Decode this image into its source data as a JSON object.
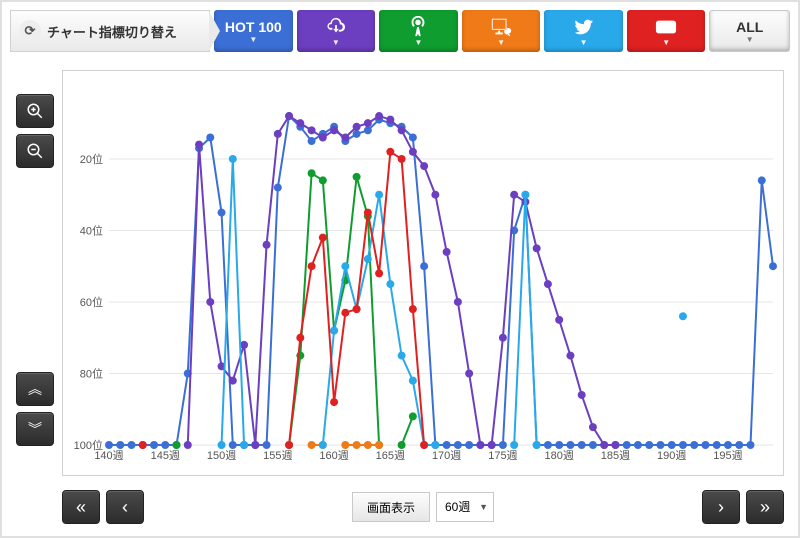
{
  "header": {
    "lead_label": "チャート指標切り替え",
    "tabs": {
      "hot100_label": "HOT 100",
      "all_label": "ALL"
    }
  },
  "controls": {
    "display_label": "画面表示",
    "range_select_value": "60週"
  },
  "chart": {
    "type": "line",
    "background_color": "#ffffff",
    "grid_color": "#e6e6e6",
    "x": {
      "min": 140,
      "max": 199,
      "tick_step": 5,
      "suffix": "週",
      "label_fontsize": 11
    },
    "y": {
      "min": 1,
      "max": 100,
      "inverted": true,
      "ticks": [
        20,
        40,
        60,
        80,
        100
      ],
      "suffix": "位",
      "label_fontsize": 11
    },
    "marker_radius": 4,
    "line_width": 2,
    "series": [
      {
        "name": "hot100",
        "color": "#3b6fd6",
        "data": [
          [
            140,
            100
          ],
          [
            141,
            100
          ],
          [
            142,
            100
          ],
          [
            143,
            100
          ],
          [
            144,
            100
          ],
          [
            145,
            100
          ],
          [
            146,
            100
          ],
          [
            147,
            80
          ],
          [
            148,
            17
          ],
          [
            149,
            14
          ],
          [
            150,
            35
          ],
          [
            151,
            100
          ],
          [
            152,
            100
          ],
          [
            153,
            100
          ],
          [
            154,
            100
          ],
          [
            155,
            28
          ],
          [
            156,
            8
          ],
          [
            157,
            11
          ],
          [
            158,
            15
          ],
          [
            159,
            13
          ],
          [
            160,
            11
          ],
          [
            161,
            15
          ],
          [
            162,
            13
          ],
          [
            163,
            12
          ],
          [
            164,
            9
          ],
          [
            165,
            10
          ],
          [
            166,
            11
          ],
          [
            167,
            14
          ],
          [
            168,
            50
          ],
          [
            169,
            100
          ],
          [
            170,
            100
          ],
          [
            171,
            100
          ],
          [
            172,
            100
          ],
          [
            173,
            100
          ],
          [
            174,
            100
          ],
          [
            175,
            100
          ],
          [
            176,
            40
          ],
          [
            177,
            30
          ],
          [
            178,
            100
          ],
          [
            179,
            100
          ],
          [
            180,
            100
          ],
          [
            181,
            100
          ],
          [
            182,
            100
          ],
          [
            183,
            100
          ],
          [
            184,
            100
          ],
          [
            185,
            100
          ],
          [
            186,
            100
          ],
          [
            187,
            100
          ],
          [
            188,
            100
          ],
          [
            189,
            100
          ],
          [
            190,
            100
          ],
          [
            191,
            100
          ],
          [
            192,
            100
          ],
          [
            193,
            100
          ],
          [
            194,
            100
          ],
          [
            195,
            100
          ],
          [
            196,
            100
          ],
          [
            197,
            100
          ],
          [
            198,
            26
          ],
          [
            199,
            50
          ]
        ]
      },
      {
        "name": "purple",
        "color": "#6b3fbf",
        "data": [
          [
            147,
            100
          ],
          [
            148,
            16
          ],
          [
            149,
            60
          ],
          [
            150,
            78
          ],
          [
            151,
            82
          ],
          [
            152,
            72
          ],
          [
            153,
            100
          ],
          [
            154,
            44
          ],
          [
            155,
            13
          ],
          [
            156,
            8
          ],
          [
            157,
            10
          ],
          [
            158,
            12
          ],
          [
            159,
            14
          ],
          [
            160,
            12
          ],
          [
            161,
            14
          ],
          [
            162,
            11
          ],
          [
            163,
            10
          ],
          [
            164,
            8
          ],
          [
            165,
            9
          ],
          [
            166,
            12
          ],
          [
            167,
            18
          ],
          [
            168,
            22
          ],
          [
            169,
            30
          ],
          [
            170,
            46
          ],
          [
            171,
            60
          ],
          [
            172,
            80
          ],
          [
            173,
            100
          ],
          [
            174,
            100
          ],
          [
            175,
            70
          ],
          [
            176,
            30
          ],
          [
            177,
            32
          ],
          [
            178,
            45
          ],
          [
            179,
            55
          ],
          [
            180,
            65
          ],
          [
            181,
            75
          ],
          [
            182,
            86
          ],
          [
            183,
            95
          ],
          [
            184,
            100
          ],
          [
            185,
            100
          ]
        ]
      },
      {
        "name": "green",
        "color": "#0f9d2f",
        "data": [
          [
            146,
            100
          ],
          [
            156,
            100
          ],
          [
            157,
            75
          ],
          [
            158,
            24
          ],
          [
            159,
            26
          ],
          [
            160,
            68
          ],
          [
            161,
            54
          ],
          [
            162,
            25
          ],
          [
            163,
            36
          ],
          [
            164,
            100
          ],
          [
            166,
            100
          ],
          [
            167,
            92
          ]
        ]
      },
      {
        "name": "orange",
        "color": "#f07a18",
        "data": [
          [
            158,
            100
          ],
          [
            159,
            100
          ],
          [
            161,
            100
          ],
          [
            162,
            100
          ],
          [
            163,
            100
          ],
          [
            164,
            100
          ]
        ]
      },
      {
        "name": "sky",
        "color": "#29a9ea",
        "data": [
          [
            150,
            100
          ],
          [
            151,
            20
          ],
          [
            152,
            100
          ],
          [
            159,
            100
          ],
          [
            160,
            68
          ],
          [
            161,
            50
          ],
          [
            162,
            62
          ],
          [
            163,
            48
          ],
          [
            164,
            30
          ],
          [
            165,
            55
          ],
          [
            166,
            75
          ],
          [
            167,
            82
          ],
          [
            168,
            100
          ],
          [
            169,
            100
          ],
          [
            176,
            100
          ],
          [
            177,
            30
          ],
          [
            178,
            100
          ],
          [
            191,
            64
          ]
        ]
      },
      {
        "name": "red",
        "color": "#e02121",
        "data": [
          [
            143,
            100
          ],
          [
            156,
            100
          ],
          [
            157,
            70
          ],
          [
            158,
            50
          ],
          [
            159,
            42
          ],
          [
            160,
            88
          ],
          [
            161,
            63
          ],
          [
            162,
            62
          ],
          [
            163,
            35
          ],
          [
            164,
            52
          ],
          [
            165,
            18
          ],
          [
            166,
            20
          ],
          [
            167,
            62
          ],
          [
            168,
            100
          ]
        ]
      }
    ]
  }
}
